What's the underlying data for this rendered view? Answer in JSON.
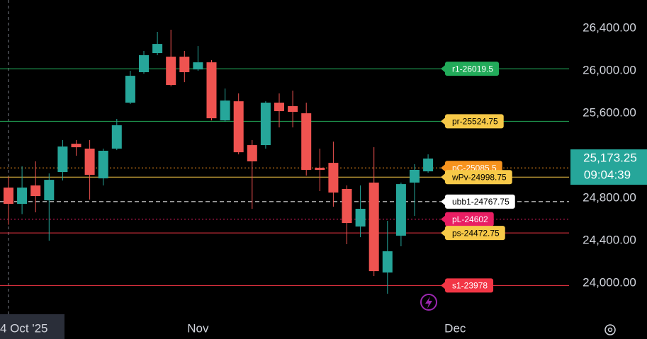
{
  "chart_data": {
    "type": "candlestick",
    "categories": [
      "4 Oct '25",
      null,
      null,
      null,
      null,
      null,
      null,
      null,
      null,
      null,
      null,
      null,
      null,
      null,
      "Nov",
      null,
      null,
      null,
      null,
      null,
      null,
      null,
      null,
      null,
      null,
      null,
      null,
      null,
      null,
      null,
      null,
      null,
      null,
      "Dec"
    ],
    "open": [
      24900,
      24747,
      24920,
      24780,
      25047,
      25313,
      25267,
      24987,
      25267,
      25700,
      25987,
      26167,
      26133,
      26133,
      26013,
      26080,
      25533,
      25713,
      25300,
      25300,
      25700,
      25667,
      25600,
      25087,
      25133,
      24887,
      24533,
      24947,
      24100,
      24447,
      24947,
      25053,
      null,
      null
    ],
    "high": [
      25000,
      25100,
      25147,
      25033,
      25347,
      25347,
      25347,
      25267,
      25547,
      26000,
      26187,
      26367,
      26387,
      26187,
      26233,
      26100,
      25833,
      25787,
      25347,
      25713,
      25787,
      25813,
      25700,
      25267,
      25333,
      24920,
      24920,
      25280,
      24587,
      24947,
      25120,
      25213,
      null,
      null
    ],
    "low": [
      24550,
      24650,
      24667,
      24400,
      24967,
      25200,
      24787,
      24920,
      25253,
      25687,
      25973,
      26147,
      25853,
      25893,
      26000,
      25533,
      25520,
      25213,
      24700,
      25267,
      25467,
      25467,
      25013,
      24867,
      24720,
      24367,
      24433,
      24067,
      23900,
      24347,
      24633,
      25040,
      null,
      null
    ],
    "close": [
      24747,
      24900,
      24820,
      24973,
      25287,
      25280,
      25020,
      25247,
      25487,
      25953,
      26147,
      26253,
      25867,
      25987,
      26080,
      25553,
      25720,
      25233,
      25147,
      25700,
      25620,
      25613,
      25067,
      25067,
      24853,
      24567,
      24700,
      24113,
      24300,
      24933,
      25067,
      25173.25,
      null,
      null
    ],
    "up_color": "#26a69a",
    "down_color": "#ef5350",
    "ylim": [
      23687,
      26667
    ],
    "yticks": [
      {
        "value": 26400,
        "label": "26,400.00"
      },
      {
        "value": 26000,
        "label": "26,000.00"
      },
      {
        "value": 25600,
        "label": "25,600.00"
      },
      {
        "value": 24800,
        "label": "24,800.00"
      },
      {
        "value": 24400,
        "label": "24,400.00"
      },
      {
        "value": 24000,
        "label": "24,000.00"
      }
    ],
    "levels": [
      {
        "label": "r1-26019.5",
        "value": 26019.5,
        "line_color": "#22ab5a",
        "line_style": "solid",
        "label_color": "#22ab5a",
        "text_color": "#ffffff"
      },
      {
        "label": "pr-25524.75",
        "value": 25524.75,
        "line_color": "#22ab5a",
        "line_style": "solid",
        "label_color": "#f7c948",
        "text_color": "#000000"
      },
      {
        "label": "pC-25085.5",
        "value": 25085.5,
        "line_color": "#f7931e",
        "line_style": "dotted",
        "label_color": "#f7931e",
        "text_color": "#ffffff"
      },
      {
        "label": "wPv-24998.75",
        "value": 24998.75,
        "line_color": "#f7c948",
        "line_style": "solid",
        "label_color": "#f7c948",
        "text_color": "#000000"
      },
      {
        "label": "ubb1-24767.75",
        "value": 24767.75,
        "line_color": "#ffffff",
        "line_style": "dashed",
        "label_color": "#ffffff",
        "text_color": "#000000"
      },
      {
        "label": "pL-24602",
        "value": 24602,
        "line_color": "#e91e63",
        "line_style": "dotted",
        "label_color": "#e91e63",
        "text_color": "#ffffff"
      },
      {
        "label": "ps-24472.75",
        "value": 24472.75,
        "line_color": "#f23645",
        "line_style": "solid",
        "label_color": "#f7c948",
        "text_color": "#000000"
      },
      {
        "label": "s1-23978",
        "value": 23978,
        "line_color": "#f23645",
        "line_style": "solid",
        "label_color": "#f23645",
        "text_color": "#ffffff"
      }
    ],
    "last_price": {
      "value": 25173.25,
      "label": "25,173.25"
    },
    "countdown": "09:04:39",
    "last_price_color": "#26a69a"
  }
}
